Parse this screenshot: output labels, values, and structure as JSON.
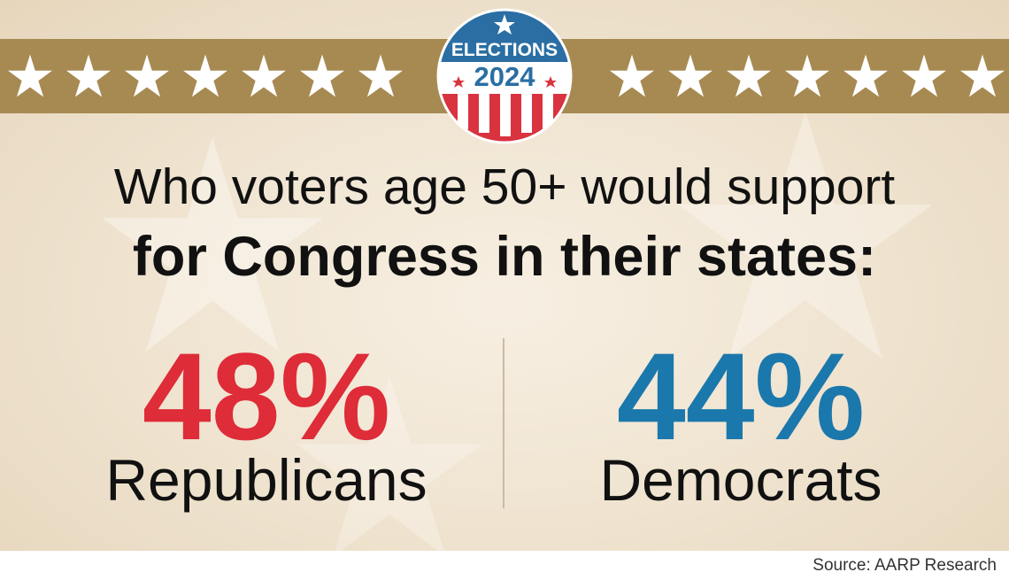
{
  "badge": {
    "line1": "ELECTIONS",
    "line2": "2024"
  },
  "headline": {
    "line1": "Who voters age 50+ would support",
    "line2": "for Congress in their states:"
  },
  "results": [
    {
      "percent": "48%",
      "party": "Republicans",
      "color": "#de2c38"
    },
    {
      "percent": "44%",
      "party": "Democrats",
      "color": "#1b78ac"
    }
  ],
  "source": "Source: AARP Research",
  "colors": {
    "banner": "#a78a52",
    "star": "#ffffff",
    "badge_blue": "#2a6ea3",
    "badge_red": "#d8333f"
  },
  "icons": {
    "banner_star": "star-icon",
    "badge_star": "star-icon"
  }
}
